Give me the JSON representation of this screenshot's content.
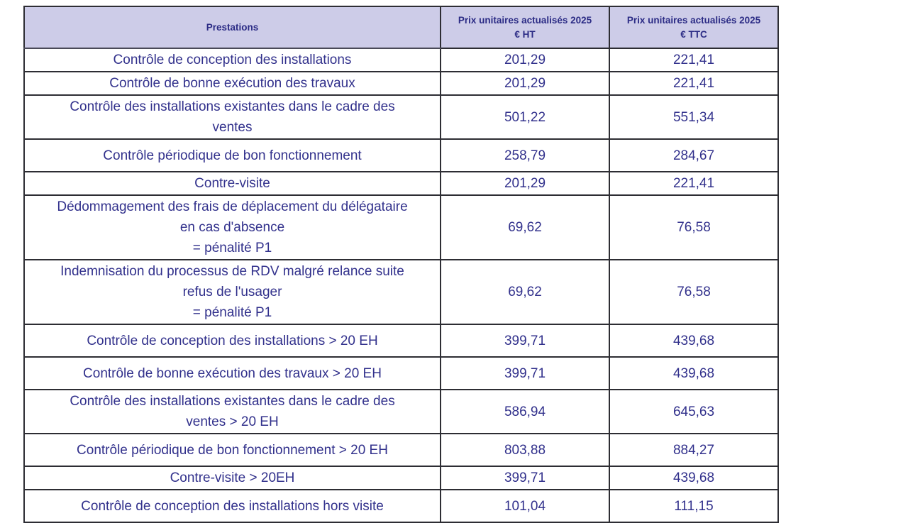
{
  "table": {
    "columns": [
      {
        "label": "Prestations"
      },
      {
        "label": "Prix unitaires actualisés 2025\n€ HT"
      },
      {
        "label": "Prix unitaires actualisés 2025\n€ TTC"
      }
    ],
    "rows": [
      {
        "prestation": "Contrôle de conception des installations",
        "prix_ht": "201,29",
        "prix_ttc": "221,41"
      },
      {
        "prestation": "Contrôle de bonne exécution des travaux",
        "prix_ht": "201,29",
        "prix_ttc": "221,41"
      },
      {
        "prestation": "Contrôle des installations existantes dans le cadre des\nventes",
        "prix_ht": "501,22",
        "prix_ttc": "551,34"
      },
      {
        "prestation": "Contrôle périodique de bon fonctionnement",
        "prix_ht": "258,79",
        "prix_ttc": "284,67"
      },
      {
        "prestation": "Contre-visite",
        "prix_ht": "201,29",
        "prix_ttc": "221,41"
      },
      {
        "prestation": "Dédommagement des frais de déplacement du délégataire\nen cas d'absence\n= pénalité P1",
        "prix_ht": "69,62",
        "prix_ttc": "76,58"
      },
      {
        "prestation": "Indemnisation du processus de RDV malgré relance suite\nrefus de l'usager\n= pénalité P1",
        "prix_ht": "69,62",
        "prix_ttc": "76,58"
      },
      {
        "prestation": "Contrôle de conception des installations > 20 EH",
        "prix_ht": "399,71",
        "prix_ttc": "439,68"
      },
      {
        "prestation": "Contrôle de bonne exécution des travaux > 20 EH",
        "prix_ht": "399,71",
        "prix_ttc": "439,68"
      },
      {
        "prestation": "Contrôle des installations existantes dans le cadre des\nventes > 20 EH",
        "prix_ht": "586,94",
        "prix_ttc": "645,63"
      },
      {
        "prestation": "Contrôle périodique de bon fonctionnement > 20 EH",
        "prix_ht": "803,88",
        "prix_ttc": "884,27"
      },
      {
        "prestation": "Contre-visite > 20EH",
        "prix_ht": "399,71",
        "prix_ttc": "439,68"
      },
      {
        "prestation": "Contrôle de conception des installations hors visite",
        "prix_ht": "101,04",
        "prix_ttc": "111,15"
      }
    ],
    "colors": {
      "header_bg": "#cdcce8",
      "header_text": "#2b2b85",
      "body_text": "#32318c",
      "border": "#2d2d33"
    }
  }
}
